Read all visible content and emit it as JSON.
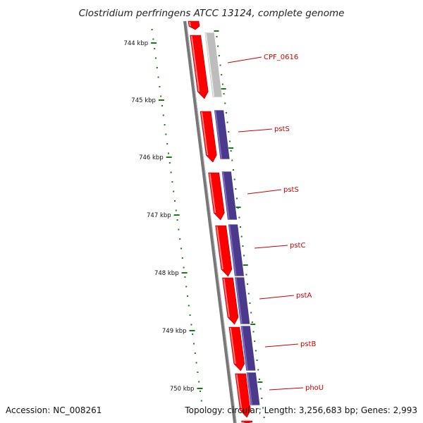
{
  "title": "Clostridium perfringens ATCC 13124, complete genome",
  "footer": {
    "accession": "Accession: NC_008261",
    "topology": "Topology: circular; Length: 3,256,683 bp; Genes: 2,993"
  },
  "scale_labels": [
    "744 kbp",
    "745 kbp",
    "746 kbp",
    "747 kbp",
    "748 kbp",
    "749 kbp",
    "750 kbp"
  ],
  "gene_labels": [
    "CPF_0616",
    "pstS",
    "pstS",
    "pstC",
    "pstA",
    "pstB",
    "phoU"
  ],
  "colors": {
    "strand_red": "#ff0000",
    "gene_grey": "#bdbdbd",
    "gene_purple": "#4b3a8c",
    "backbone": "#777777",
    "scale_green": "#1a7a1a",
    "label_red": "#cc0000"
  }
}
